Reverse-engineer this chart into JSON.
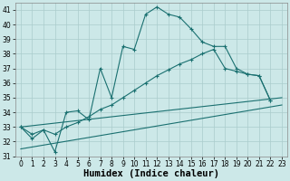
{
  "xlabel": "Humidex (Indice chaleur)",
  "background_color": "#cce8e8",
  "grid_color": "#aacccc",
  "line_color": "#1a7070",
  "ylim": [
    31.0,
    41.5
  ],
  "xlim": [
    -0.5,
    23.5
  ],
  "yticks": [
    31,
    32,
    33,
    34,
    35,
    36,
    37,
    38,
    39,
    40,
    41
  ],
  "xticks": [
    0,
    1,
    2,
    3,
    4,
    5,
    6,
    7,
    8,
    9,
    10,
    11,
    12,
    13,
    14,
    15,
    16,
    17,
    18,
    19,
    20,
    21,
    22,
    23
  ],
  "tick_fontsize": 5.5,
  "label_fontsize": 7.5,
  "line1_x": [
    0,
    1,
    2,
    3,
    4,
    5,
    6,
    7,
    8,
    9,
    10,
    11,
    12,
    13,
    14,
    15,
    16,
    17,
    18,
    19,
    20,
    21,
    22
  ],
  "line1_y": [
    33.0,
    32.2,
    32.8,
    31.3,
    34.0,
    34.1,
    33.5,
    37.0,
    35.0,
    38.5,
    38.3,
    40.7,
    41.2,
    40.7,
    40.5,
    39.7,
    38.8,
    38.5,
    38.5,
    37.0,
    36.6,
    36.5,
    34.8
  ],
  "line2_x": [
    0,
    1,
    2,
    3,
    4,
    5,
    6,
    7,
    8,
    9,
    10,
    11,
    12,
    13,
    14,
    15,
    16,
    17,
    18,
    19,
    20,
    21,
    22
  ],
  "line2_y": [
    33.0,
    32.5,
    32.8,
    32.5,
    33.0,
    33.3,
    33.7,
    34.2,
    34.5,
    35.0,
    35.5,
    36.0,
    36.5,
    36.9,
    37.3,
    37.6,
    38.0,
    38.3,
    37.0,
    36.8,
    36.6,
    36.5,
    34.8
  ],
  "line3_x": [
    0,
    23
  ],
  "line3_y": [
    33.0,
    35.0
  ],
  "line4_x": [
    0,
    23
  ],
  "line4_y": [
    31.5,
    34.5
  ]
}
